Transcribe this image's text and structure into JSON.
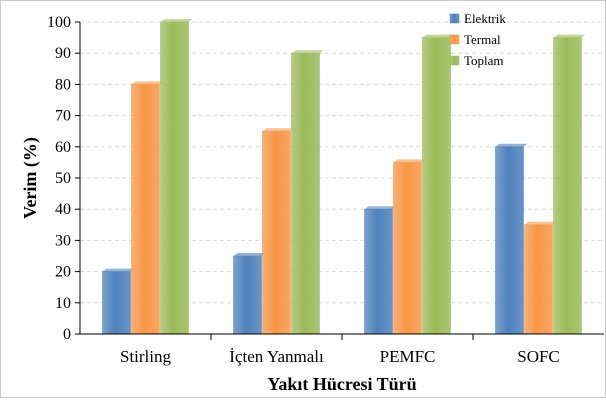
{
  "chart_data": {
    "type": "bar",
    "title": "",
    "xlabel": "Yakıt Hücresi Türü",
    "ylabel": "Verim (%)",
    "ylim": [
      0,
      100
    ],
    "yticks": [
      0,
      10,
      20,
      30,
      40,
      50,
      60,
      70,
      80,
      90,
      100
    ],
    "grid": true,
    "legend_position": "top-right",
    "categories": [
      "Stirling",
      "İçten Yanmalı",
      "PEMFC",
      "SOFC"
    ],
    "series": [
      {
        "name": "Elektrik",
        "color": "#4f81bd",
        "values": [
          20,
          25,
          40,
          60
        ]
      },
      {
        "name": "Termal",
        "color": "#f79646",
        "values": [
          80,
          65,
          55,
          35
        ]
      },
      {
        "name": "Toplam",
        "color": "#9bbb59",
        "values": [
          100,
          90,
          95,
          95
        ]
      }
    ]
  }
}
